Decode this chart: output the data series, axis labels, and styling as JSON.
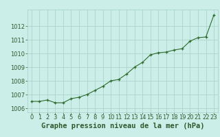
{
  "x": [
    0,
    1,
    2,
    3,
    4,
    5,
    6,
    7,
    8,
    9,
    10,
    11,
    12,
    13,
    14,
    15,
    16,
    17,
    18,
    19,
    20,
    21,
    22,
    23
  ],
  "y": [
    1006.5,
    1006.5,
    1006.6,
    1006.4,
    1006.4,
    1006.7,
    1006.8,
    1007.0,
    1007.3,
    1007.6,
    1008.0,
    1008.1,
    1008.5,
    1009.0,
    1009.35,
    1009.9,
    1010.05,
    1010.1,
    1010.25,
    1010.35,
    1010.9,
    1011.15,
    1011.2,
    1012.8
  ],
  "xlim": [
    -0.5,
    23.5
  ],
  "ylim": [
    1005.7,
    1013.2
  ],
  "yticks": [
    1006,
    1007,
    1008,
    1009,
    1010,
    1011,
    1012
  ],
  "xticks": [
    0,
    1,
    2,
    3,
    4,
    5,
    6,
    7,
    8,
    9,
    10,
    11,
    12,
    13,
    14,
    15,
    16,
    17,
    18,
    19,
    20,
    21,
    22,
    23
  ],
  "xlabel": "Graphe pression niveau de la mer (hPa)",
  "line_color": "#2d6a2d",
  "marker_color": "#2d6a2d",
  "bg_color": "#cceee8",
  "grid_color": "#aad4cc",
  "text_color": "#2d5a2d",
  "tick_fontsize": 6.0,
  "xlabel_fontsize": 7.5
}
